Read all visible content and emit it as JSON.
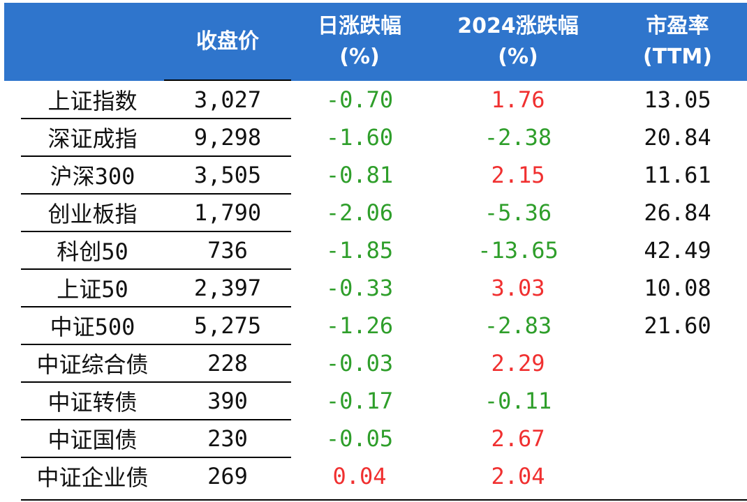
{
  "headers": [
    "",
    "收盘价",
    "日涨跌幅\n(%)",
    "2024涨跌幅\n(%)",
    "市盈率\n(TTM)"
  ],
  "colors": {
    "header_bg": "#2f75cc",
    "positive": "#f03030",
    "negative": "#2e9e2a"
  },
  "rows": [
    {
      "name": "上证指数",
      "close": "3,027",
      "daily": "-0.70",
      "daily_sign": "neg",
      "ytd": "1.76",
      "ytd_sign": "pos",
      "pe": "13.05"
    },
    {
      "name": "深证成指",
      "close": "9,298",
      "daily": "-1.60",
      "daily_sign": "neg",
      "ytd": "-2.38",
      "ytd_sign": "neg",
      "pe": "20.84"
    },
    {
      "name": "沪深300",
      "close": "3,505",
      "daily": "-0.81",
      "daily_sign": "neg",
      "ytd": "2.15",
      "ytd_sign": "pos",
      "pe": "11.61"
    },
    {
      "name": "创业板指",
      "close": "1,790",
      "daily": "-2.06",
      "daily_sign": "neg",
      "ytd": "-5.36",
      "ytd_sign": "neg",
      "pe": "26.84"
    },
    {
      "name": "科创50",
      "close": "736",
      "daily": "-1.85",
      "daily_sign": "neg",
      "ytd": "-13.65",
      "ytd_sign": "neg",
      "pe": "42.49"
    },
    {
      "name": "上证50",
      "close": "2,397",
      "daily": "-0.33",
      "daily_sign": "neg",
      "ytd": "3.03",
      "ytd_sign": "pos",
      "pe": "10.08"
    },
    {
      "name": "中证500",
      "close": "5,275",
      "daily": "-1.26",
      "daily_sign": "neg",
      "ytd": "-2.83",
      "ytd_sign": "neg",
      "pe": "21.60"
    },
    {
      "name": "中证综合债",
      "close": "228",
      "daily": "-0.03",
      "daily_sign": "neg",
      "ytd": "2.29",
      "ytd_sign": "pos",
      "pe": ""
    },
    {
      "name": "中证转债",
      "close": "390",
      "daily": "-0.17",
      "daily_sign": "neg",
      "ytd": "-0.11",
      "ytd_sign": "neg",
      "pe": ""
    },
    {
      "name": "中证国债",
      "close": "230",
      "daily": "-0.05",
      "daily_sign": "neg",
      "ytd": "2.67",
      "ytd_sign": "pos",
      "pe": ""
    },
    {
      "name": "中证企业债",
      "close": "269",
      "daily": "0.04",
      "daily_sign": "pos",
      "ytd": "2.04",
      "ytd_sign": "pos",
      "pe": ""
    }
  ]
}
